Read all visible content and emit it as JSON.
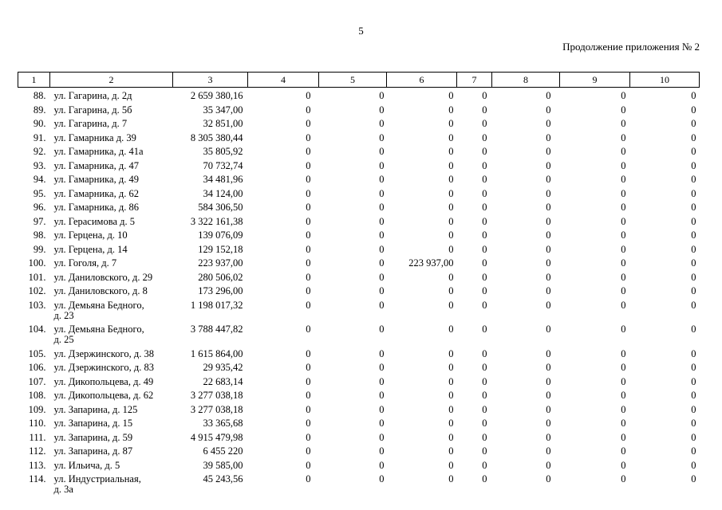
{
  "page": {
    "number": "5",
    "continuation_note": "Продолжение приложения № 2",
    "background_color": "#ffffff",
    "text_color": "#000000"
  },
  "table": {
    "column_headers": [
      "1",
      "2",
      "3",
      "4",
      "5",
      "6",
      "7",
      "8",
      "9",
      "10"
    ],
    "rows": [
      {
        "num": "88.",
        "address": "ул. Гагарина, д. 2д",
        "c3": "2 659 380,16",
        "c4": "0",
        "c5": "0",
        "c6": "0",
        "c7": "0",
        "c8": "0",
        "c9": "0",
        "c10": "0"
      },
      {
        "num": "89.",
        "address": "ул. Гагарина, д. 5б",
        "c3": "35 347,00",
        "c4": "0",
        "c5": "0",
        "c6": "0",
        "c7": "0",
        "c8": "0",
        "c9": "0",
        "c10": "0"
      },
      {
        "num": "90.",
        "address": "ул. Гагарина, д. 7",
        "c3": "32 851,00",
        "c4": "0",
        "c5": "0",
        "c6": "0",
        "c7": "0",
        "c8": "0",
        "c9": "0",
        "c10": "0"
      },
      {
        "num": "91.",
        "address": "ул. Гамарника д. 39",
        "c3": "8 305 380,44",
        "c4": "0",
        "c5": "0",
        "c6": "0",
        "c7": "0",
        "c8": "0",
        "c9": "0",
        "c10": "0"
      },
      {
        "num": "92.",
        "address": "ул. Гамарника, д. 41а",
        "c3": "35 805,92",
        "c4": "0",
        "c5": "0",
        "c6": "0",
        "c7": "0",
        "c8": "0",
        "c9": "0",
        "c10": "0"
      },
      {
        "num": "93.",
        "address": "ул. Гамарника, д. 47",
        "c3": "70 732,74",
        "c4": "0",
        "c5": "0",
        "c6": "0",
        "c7": "0",
        "c8": "0",
        "c9": "0",
        "c10": "0"
      },
      {
        "num": "94.",
        "address": "ул. Гамарника, д. 49",
        "c3": "34 481,96",
        "c4": "0",
        "c5": "0",
        "c6": "0",
        "c7": "0",
        "c8": "0",
        "c9": "0",
        "c10": "0"
      },
      {
        "num": "95.",
        "address": "ул. Гамарника, д. 62",
        "c3": "34 124,00",
        "c4": "0",
        "c5": "0",
        "c6": "0",
        "c7": "0",
        "c8": "0",
        "c9": "0",
        "c10": "0"
      },
      {
        "num": "96.",
        "address": "ул. Гамарника, д. 86",
        "c3": "584 306,50",
        "c4": "0",
        "c5": "0",
        "c6": "0",
        "c7": "0",
        "c8": "0",
        "c9": "0",
        "c10": "0"
      },
      {
        "num": "97.",
        "address": "ул. Герасимова д. 5",
        "c3": "3 322 161,38",
        "c4": "0",
        "c5": "0",
        "c6": "0",
        "c7": "0",
        "c8": "0",
        "c9": "0",
        "c10": "0"
      },
      {
        "num": "98.",
        "address": "ул. Герцена, д. 10",
        "c3": "139 076,09",
        "c4": "0",
        "c5": "0",
        "c6": "0",
        "c7": "0",
        "c8": "0",
        "c9": "0",
        "c10": "0"
      },
      {
        "num": "99.",
        "address": "ул. Герцена, д. 14",
        "c3": "129 152,18",
        "c4": "0",
        "c5": "0",
        "c6": "0",
        "c7": "0",
        "c8": "0",
        "c9": "0",
        "c10": "0"
      },
      {
        "num": "100.",
        "address": "ул. Гоголя, д. 7",
        "c3": "223 937,00",
        "c4": "0",
        "c5": "0",
        "c6": "223 937,00",
        "c7": "0",
        "c8": "0",
        "c9": "0",
        "c10": "0"
      },
      {
        "num": "101.",
        "address": "ул. Даниловского, д. 29",
        "c3": "280 506,02",
        "c4": "0",
        "c5": "0",
        "c6": "0",
        "c7": "0",
        "c8": "0",
        "c9": "0",
        "c10": "0"
      },
      {
        "num": "102.",
        "address": "ул. Даниловского, д. 8",
        "c3": "173 296,00",
        "c4": "0",
        "c5": "0",
        "c6": "0",
        "c7": "0",
        "c8": "0",
        "c9": "0",
        "c10": "0"
      },
      {
        "num": "103.",
        "address": "ул. Демьяна Бедного,\nд. 23",
        "c3": "1 198 017,32",
        "c4": "0",
        "c5": "0",
        "c6": "0",
        "c7": "0",
        "c8": "0",
        "c9": "0",
        "c10": "0"
      },
      {
        "num": "104.",
        "address": "ул. Демьяна Бедного,\nд. 25",
        "c3": "3 788 447,82",
        "c4": "0",
        "c5": "0",
        "c6": "0",
        "c7": "0",
        "c8": "0",
        "c9": "0",
        "c10": "0"
      },
      {
        "num": "105.",
        "address": "ул. Дзержинского, д. 38",
        "c3": "1 615 864,00",
        "c4": "0",
        "c5": "0",
        "c6": "0",
        "c7": "0",
        "c8": "0",
        "c9": "0",
        "c10": "0"
      },
      {
        "num": "106.",
        "address": "ул. Дзержинского, д. 83",
        "c3": "29 935,42",
        "c4": "0",
        "c5": "0",
        "c6": "0",
        "c7": "0",
        "c8": "0",
        "c9": "0",
        "c10": "0"
      },
      {
        "num": "107.",
        "address": "ул. Дикопольцева, д. 49",
        "c3": "22 683,14",
        "c4": "0",
        "c5": "0",
        "c6": "0",
        "c7": "0",
        "c8": "0",
        "c9": "0",
        "c10": "0"
      },
      {
        "num": "108.",
        "address": "ул. Дикопольцева, д. 62",
        "c3": "3 277 038,18",
        "c4": "0",
        "c5": "0",
        "c6": "0",
        "c7": "0",
        "c8": "0",
        "c9": "0",
        "c10": "0"
      },
      {
        "num": "109.",
        "address": "ул. Запарина, д. 125",
        "c3": "3 277 038,18",
        "c4": "0",
        "c5": "0",
        "c6": "0",
        "c7": "0",
        "c8": "0",
        "c9": "0",
        "c10": "0"
      },
      {
        "num": "110.",
        "address": "ул. Запарина, д. 15",
        "c3": "33 365,68",
        "c4": "0",
        "c5": "0",
        "c6": "0",
        "c7": "0",
        "c8": "0",
        "c9": "0",
        "c10": "0"
      },
      {
        "num": "111.",
        "address": "ул. Запарина, д. 59",
        "c3": "4 915 479,98",
        "c4": "0",
        "c5": "0",
        "c6": "0",
        "c7": "0",
        "c8": "0",
        "c9": "0",
        "c10": "0"
      },
      {
        "num": "112.",
        "address": "ул. Запарина, д. 87",
        "c3": "6 455 220",
        "c4": "0",
        "c5": "0",
        "c6": "0",
        "c7": "0",
        "c8": "0",
        "c9": "0",
        "c10": "0"
      },
      {
        "num": "113.",
        "address": "ул. Ильича, д. 5",
        "c3": "39 585,00",
        "c4": "0",
        "c5": "0",
        "c6": "0",
        "c7": "0",
        "c8": "0",
        "c9": "0",
        "c10": "0"
      },
      {
        "num": "114.",
        "address": "ул. Индустриальная,\nд. 3а",
        "c3": "45 243,56",
        "c4": "0",
        "c5": "0",
        "c6": "0",
        "c7": "0",
        "c8": "0",
        "c9": "0",
        "c10": "0"
      }
    ]
  }
}
